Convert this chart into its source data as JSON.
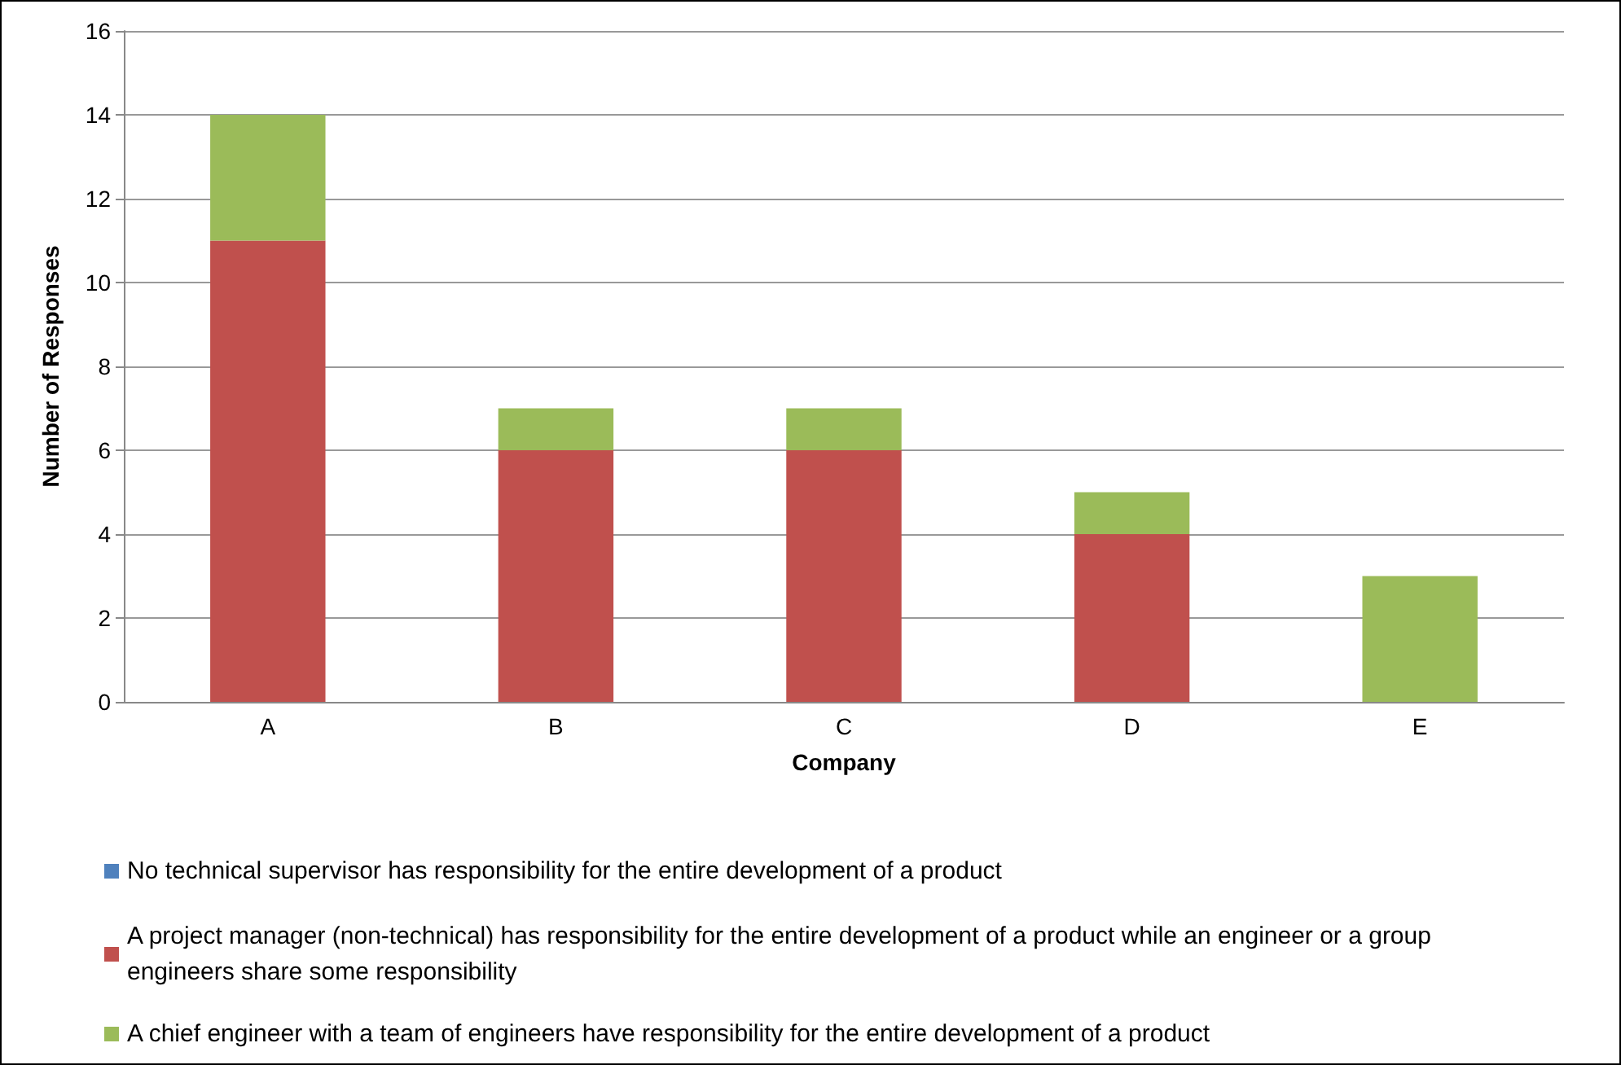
{
  "chart_data": {
    "type": "bar",
    "stacked": true,
    "xlabel": "Company",
    "ylabel": "Number of Responses",
    "categories": [
      "A",
      "B",
      "C",
      "D",
      "E"
    ],
    "series": [
      {
        "name": "No technical supervisor has responsibility for the entire development of a product",
        "color": "#4f81bd",
        "values": [
          0,
          0,
          0,
          0,
          0
        ]
      },
      {
        "name": "A project manager (non-technical) has responsibility for the entire development of a product while an engineer or a group engineers share some responsibility",
        "color": "#c0504d",
        "values": [
          11,
          6,
          6,
          4,
          0
        ]
      },
      {
        "name": "A chief engineer with a team of engineers have responsibility for the entire development of a product",
        "color": "#9bbb59",
        "values": [
          3,
          1,
          1,
          1,
          3
        ]
      }
    ],
    "ylim": [
      0,
      16
    ],
    "yticks": [
      0,
      2,
      4,
      6,
      8,
      10,
      12,
      14,
      16
    ],
    "grid": "y",
    "legend": "bottom"
  }
}
